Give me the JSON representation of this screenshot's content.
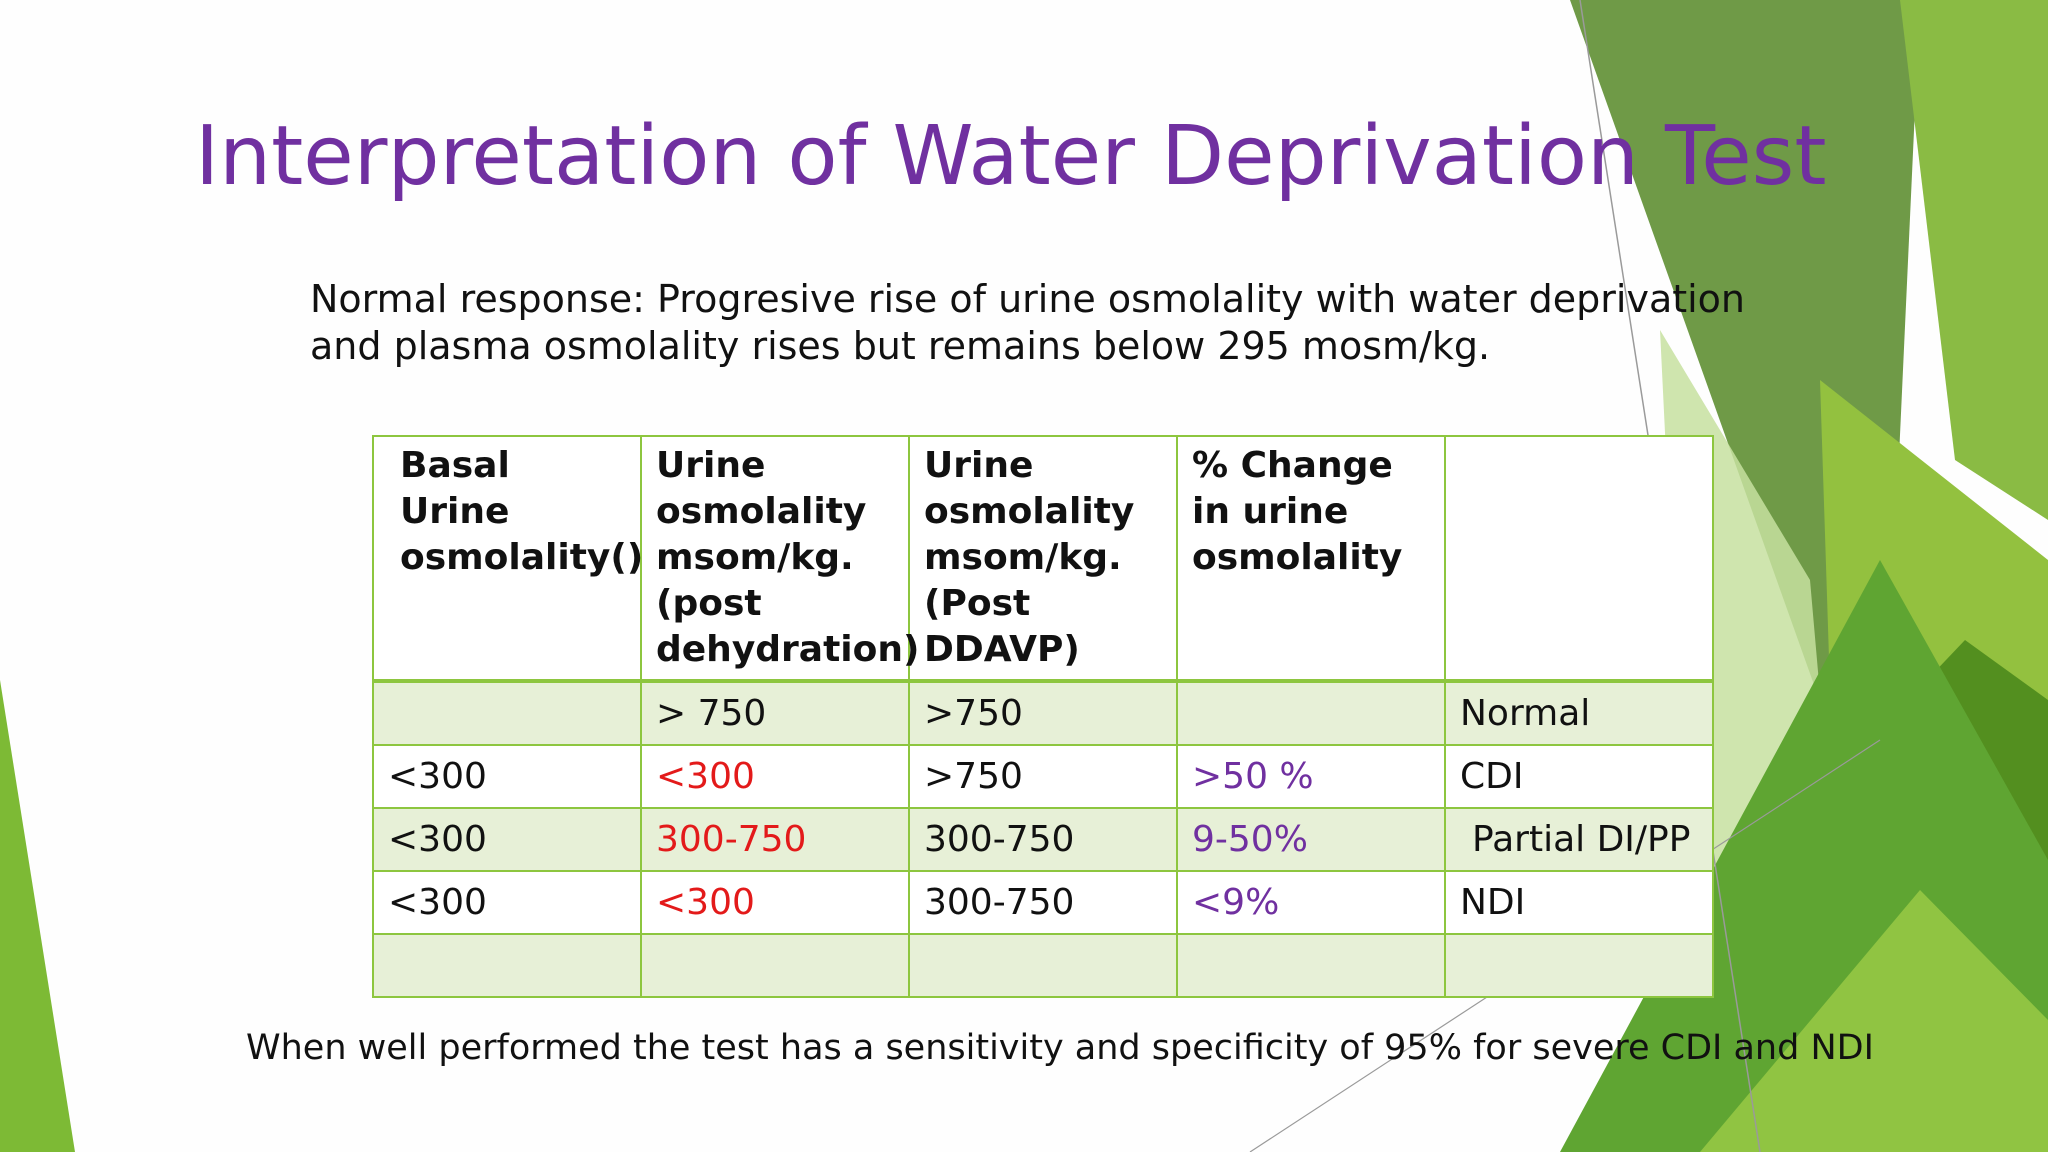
{
  "slide": {
    "title": "Interpretation of Water Deprivation Test",
    "intro_line1": "Normal response: Progresive rise of urine osmolality with water deprivation",
    "intro_line2": "and plasma osmolality rises but remains below 295 mosm/kg.",
    "footer": "When well performed the test has a sensitivity and specificity of 95% for severe CDI and NDI"
  },
  "table": {
    "headers": [
      "Basal Urine osmolality()",
      "Urine osmolality msom/kg. (post dehydration)",
      "Urine osmolality msom/kg. (Post DDAVP)",
      "% Change in urine osmolality",
      ""
    ],
    "rows": [
      [
        "",
        "> 750",
        ">750",
        "",
        "Normal"
      ],
      [
        "<300",
        "<300",
        ">750",
        ">50 %",
        "CDI"
      ],
      [
        "<300",
        "300-750",
        "300-750",
        "9-50%",
        "Partial DI/PP"
      ],
      [
        "<300",
        "<300",
        "300-750",
        "<9%",
        "NDI"
      ],
      [
        "",
        "",
        "",
        "",
        ""
      ]
    ]
  },
  "colors": {
    "title": "#7030a0",
    "accent_green": "#8dc63f",
    "dark_green": "#4e8a1f",
    "row_band": "#e7f0d7",
    "highlight_red": "#e31a1a",
    "highlight_purple": "#7030a0"
  }
}
